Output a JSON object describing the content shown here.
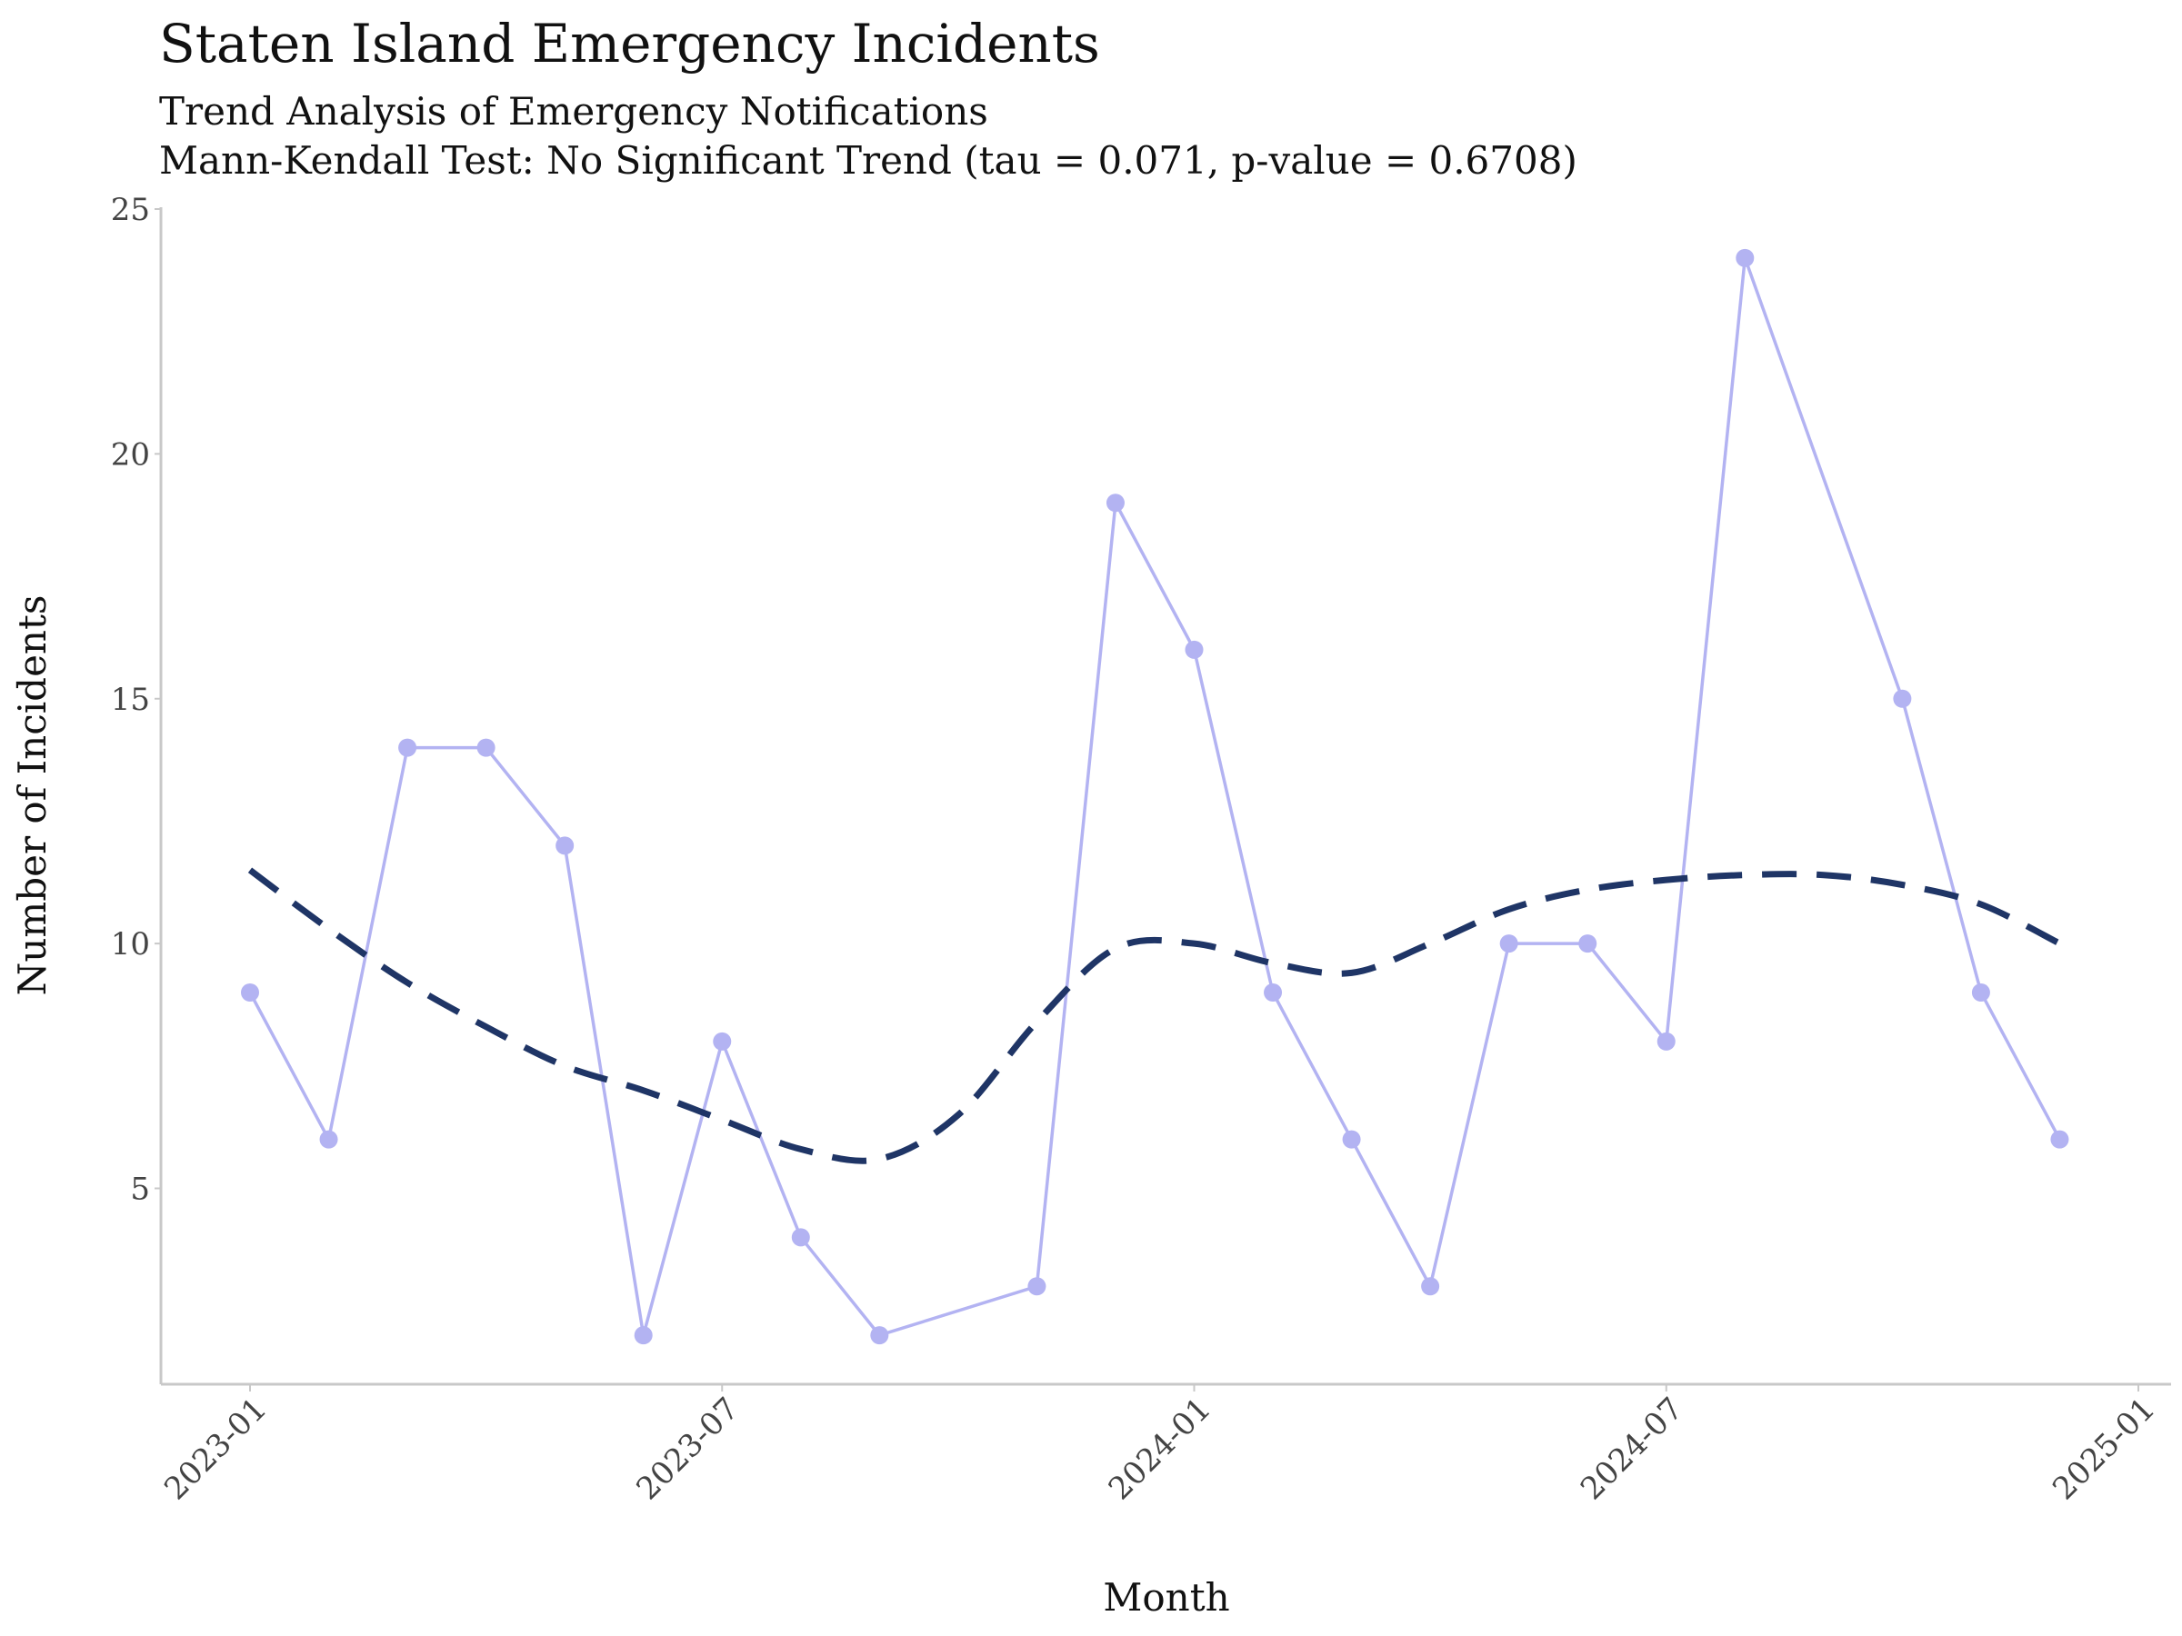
{
  "chart_data": {
    "type": "line",
    "title": "Staten Island Emergency Incidents",
    "subtitle": "Trend Analysis of Emergency Notifications",
    "subtitle2": "Mann-Kendall Test: No Significant Trend (tau = 0.071, p-value = 0.6708)",
    "xlabel": "Month",
    "ylabel": "Number of Incidents",
    "x_ticks": [
      "2023-01",
      "2023-07",
      "2024-01",
      "2024-07",
      "2025-01"
    ],
    "y_ticks": [
      5,
      10,
      15,
      20,
      25
    ],
    "ylim": [
      1,
      25
    ],
    "grid": false,
    "legend": "none",
    "series": [
      {
        "kind": "observed",
        "color": "#b3b3f2",
        "points": [
          {
            "x": "2023-01",
            "y": 9
          },
          {
            "x": "2023-02",
            "y": 6
          },
          {
            "x": "2023-03",
            "y": 14
          },
          {
            "x": "2023-04",
            "y": 14
          },
          {
            "x": "2023-05",
            "y": 12
          },
          {
            "x": "2023-06",
            "y": 2
          },
          {
            "x": "2023-07",
            "y": 8
          },
          {
            "x": "2023-08",
            "y": 4
          },
          {
            "x": "2023-09",
            "y": 2
          },
          {
            "x": "2023-11",
            "y": 3
          },
          {
            "x": "2023-12",
            "y": 19
          },
          {
            "x": "2024-01",
            "y": 16
          },
          {
            "x": "2024-02",
            "y": 9
          },
          {
            "x": "2024-03",
            "y": 6
          },
          {
            "x": "2024-04",
            "y": 3
          },
          {
            "x": "2024-05",
            "y": 10
          },
          {
            "x": "2024-06",
            "y": 10
          },
          {
            "x": "2024-07",
            "y": 8
          },
          {
            "x": "2024-08",
            "y": 24
          },
          {
            "x": "2024-10",
            "y": 15
          },
          {
            "x": "2024-11",
            "y": 9
          },
          {
            "x": "2024-12",
            "y": 6
          }
        ]
      },
      {
        "kind": "smoothed-trend",
        "color": "#1f3566",
        "dashed": true,
        "points": [
          {
            "x": "2023-01",
            "y": 11.5
          },
          {
            "x": "2023-02",
            "y": 10.3
          },
          {
            "x": "2023-03",
            "y": 9.2
          },
          {
            "x": "2023-04",
            "y": 8.3
          },
          {
            "x": "2023-05",
            "y": 7.5
          },
          {
            "x": "2023-06",
            "y": 7.0
          },
          {
            "x": "2023-07",
            "y": 6.4
          },
          {
            "x": "2023-08",
            "y": 5.8
          },
          {
            "x": "2023-09",
            "y": 5.6
          },
          {
            "x": "2023-10",
            "y": 6.5
          },
          {
            "x": "2023-11",
            "y": 8.4
          },
          {
            "x": "2023-12",
            "y": 9.9
          },
          {
            "x": "2024-01",
            "y": 10.0
          },
          {
            "x": "2024-02",
            "y": 9.6
          },
          {
            "x": "2024-03",
            "y": 9.4
          },
          {
            "x": "2024-04",
            "y": 10.0
          },
          {
            "x": "2024-05",
            "y": 10.7
          },
          {
            "x": "2024-06",
            "y": 11.1
          },
          {
            "x": "2024-07",
            "y": 11.3
          },
          {
            "x": "2024-08",
            "y": 11.4
          },
          {
            "x": "2024-09",
            "y": 11.4
          },
          {
            "x": "2024-10",
            "y": 11.2
          },
          {
            "x": "2024-11",
            "y": 10.8
          },
          {
            "x": "2024-12",
            "y": 10.0
          }
        ]
      }
    ]
  }
}
